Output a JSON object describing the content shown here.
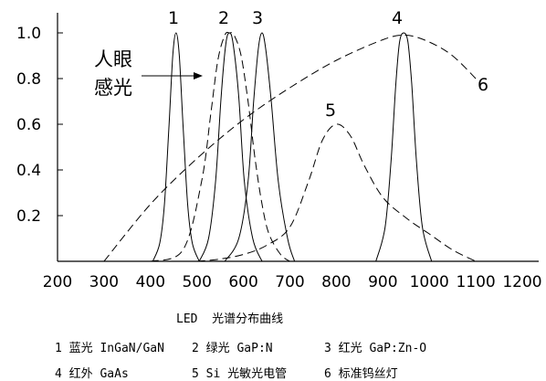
{
  "chart_data": {
    "type": "line",
    "title": "LED  光谱分布曲线",
    "xlim": [
      200,
      1200
    ],
    "ylim": [
      0,
      1.0
    ],
    "xticks": [
      "200",
      "300",
      "400",
      "500",
      "600",
      "700",
      "800",
      "900",
      "1000",
      "1100",
      "1200"
    ],
    "yticks": [
      "0.2",
      "0.4",
      "0.6",
      "0.8",
      "1.0"
    ],
    "annotation": [
      "人眼",
      "感光"
    ],
    "series": [
      {
        "name": "1",
        "legend": "1 蓝光 InGaN/GaN",
        "style": "solid",
        "x": [
          405,
          420,
          430,
          440,
          448,
          455,
          462,
          470,
          480,
          490,
          505
        ],
        "y": [
          0.0,
          0.08,
          0.25,
          0.6,
          0.9,
          1.0,
          0.9,
          0.6,
          0.25,
          0.08,
          0.0
        ]
      },
      {
        "name": "2",
        "legend": "2 绿光 GaP:N",
        "style": "solid",
        "x": [
          505,
          525,
          540,
          552,
          562,
          570,
          578,
          590,
          602,
          620,
          640
        ],
        "y": [
          0.0,
          0.1,
          0.35,
          0.72,
          0.95,
          1.0,
          0.95,
          0.72,
          0.35,
          0.1,
          0.0
        ]
      },
      {
        "name": "3",
        "legend": "3 红光 GaP:Zn-O",
        "style": "solid",
        "x": [
          560,
          590,
          610,
          622,
          632,
          640,
          648,
          660,
          675,
          695,
          710
        ],
        "y": [
          0.0,
          0.1,
          0.35,
          0.7,
          0.93,
          1.0,
          0.93,
          0.7,
          0.35,
          0.1,
          0.0
        ]
      },
      {
        "name": "4",
        "legend": "4 红外 GaAs",
        "style": "solid",
        "x": [
          885,
          905,
          918,
          928,
          936,
          945,
          954,
          962,
          972,
          985,
          1005
        ],
        "y": [
          0.0,
          0.15,
          0.45,
          0.78,
          0.96,
          1.0,
          0.96,
          0.78,
          0.45,
          0.15,
          0.0
        ]
      },
      {
        "name": "5",
        "legend": "5 Si 光敏光电管",
        "style": "dashed",
        "x": [
          500,
          550,
          600,
          650,
          700,
          740,
          770,
          800,
          830,
          860,
          900,
          950,
          1000,
          1050,
          1100
        ],
        "y": [
          0.0,
          0.01,
          0.03,
          0.07,
          0.15,
          0.35,
          0.53,
          0.6,
          0.55,
          0.42,
          0.28,
          0.19,
          0.12,
          0.05,
          0.0
        ]
      },
      {
        "name": "6",
        "legend": "6 标准钨丝灯",
        "style": "dashed",
        "x": [
          300,
          400,
          500,
          600,
          700,
          800,
          900,
          950,
          1000,
          1050,
          1100
        ],
        "y": [
          0.0,
          0.25,
          0.45,
          0.62,
          0.76,
          0.88,
          0.97,
          0.99,
          0.96,
          0.9,
          0.8
        ]
      },
      {
        "name": "",
        "legend": "",
        "style": "dashed",
        "x": [
          400,
          470,
          510,
          530,
          545,
          560,
          570,
          580,
          595,
          610,
          625,
          640,
          655,
          680,
          700
        ],
        "y": [
          0.0,
          0.05,
          0.35,
          0.65,
          0.88,
          0.99,
          1.0,
          0.99,
          0.9,
          0.7,
          0.45,
          0.25,
          0.12,
          0.03,
          0.0
        ]
      }
    ]
  },
  "caption": "LED  光谱分布曲线",
  "legend": [
    [
      "1 蓝光 InGaN/GaN",
      "2 绿光 GaP:N",
      "3 红光 GaP:Zn-O"
    ],
    [
      "4 红外 GaAs",
      "5 Si 光敏光电管",
      "6 标准钨丝灯"
    ]
  ]
}
